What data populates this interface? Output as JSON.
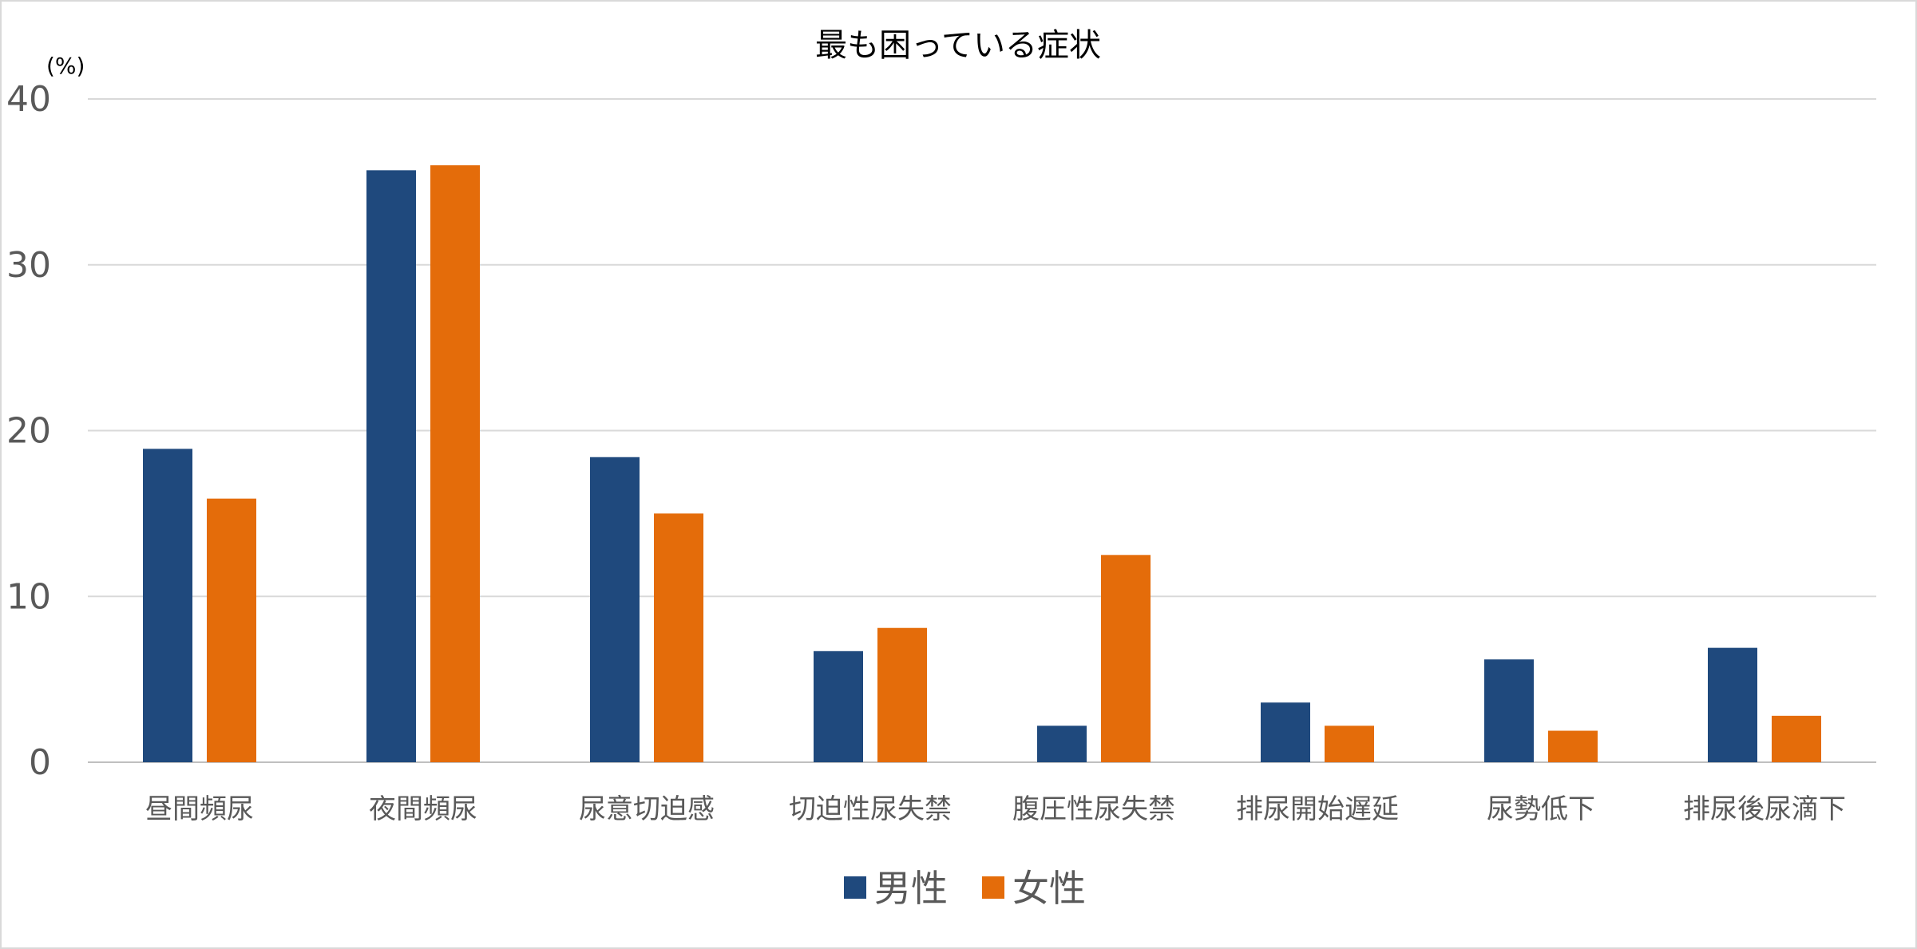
{
  "chart_data": {
    "type": "bar",
    "title": "最も困っている症状",
    "ylabel": "(%)",
    "ylim": [
      0,
      40
    ],
    "yticks": [
      0,
      10,
      20,
      30,
      40
    ],
    "grid": true,
    "legend_position": "bottom",
    "categories": [
      "昼間頻尿",
      "夜間頻尿",
      "尿意切迫感",
      "切迫性尿失禁",
      "腹圧性尿失禁",
      "排尿開始遅延",
      "尿勢低下",
      "排尿後尿滴下"
    ],
    "series": [
      {
        "name": "男性",
        "color": "#1f497d",
        "values": [
          18.9,
          35.7,
          18.4,
          6.7,
          2.2,
          3.6,
          6.2,
          6.9
        ]
      },
      {
        "name": "女性",
        "color": "#e46c0a",
        "values": [
          15.9,
          36.0,
          15.0,
          8.1,
          12.5,
          2.2,
          1.9,
          2.8
        ]
      }
    ]
  }
}
